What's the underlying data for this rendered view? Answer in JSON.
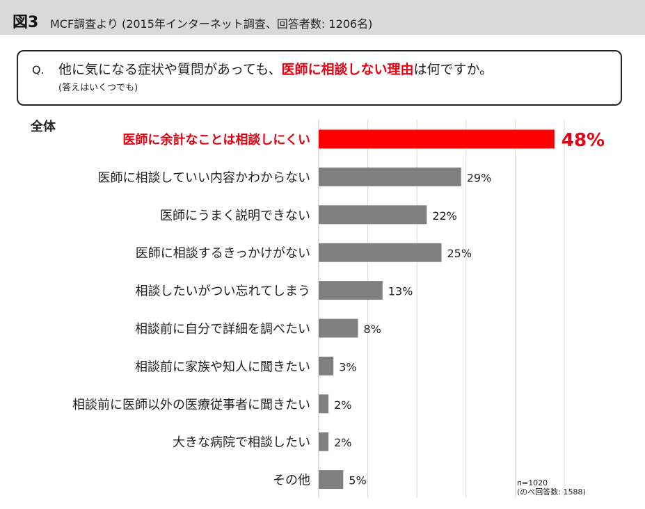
{
  "figure": {
    "label": "図3",
    "caption": "MCF調査より (2015年インターネット調査、回答者数: 1206名)"
  },
  "question": {
    "prefix": "Q.",
    "text_before": "他に気になる症状や質問があっても、",
    "text_highlight": "医師に相談しない理由",
    "text_after": "は何ですか。",
    "note": "(答えはいくつでも)"
  },
  "group_label": "全体",
  "sample_note": {
    "line1": "n=1020",
    "line2": "(のべ回答数: 1588)"
  },
  "colors": {
    "highlight": "#ff0000",
    "highlight_text": "#e60012",
    "bar": "#808080",
    "grid": "#d9d9d9"
  },
  "chart_data": {
    "type": "bar",
    "orientation": "horizontal",
    "grid": true,
    "xlim": [
      0,
      50
    ],
    "categories": [
      "医師に余計なことは相談しにくい",
      "医師に相談していい内容かわからない",
      "医師にうまく説明できない",
      "医師に相談するきっかけがない",
      "相談したいがつい忘れてしまう",
      "相談前に自分で詳細を調べたい",
      "相談前に家族や知人に聞きたい",
      "相談前に医師以外の医療従事者に聞きたい",
      "大きな病院で相談したい",
      "その他"
    ],
    "values": [
      48,
      29,
      22,
      25,
      13,
      8,
      3,
      2,
      2,
      5
    ],
    "value_labels": [
      "48%",
      "29%",
      "22%",
      "25%",
      "13%",
      "8%",
      "3%",
      "2%",
      "2%",
      "5%"
    ],
    "highlight_index": 0
  }
}
